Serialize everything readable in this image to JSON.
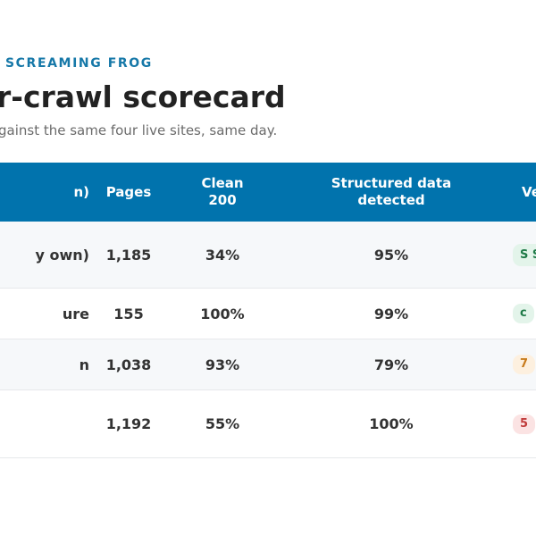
{
  "header": {
    "eyebrow": "SCREAMING FROG",
    "title": "r-crawl scorecard",
    "subtitle": "gainst the same four live sites, same day."
  },
  "table": {
    "columns": {
      "site": "n)",
      "pages": "Pages",
      "clean": "Clean 200",
      "structured": "Structured data detected",
      "verdict": "Ve"
    },
    "rows": [
      {
        "site": "y own)",
        "pages": "1,185",
        "clean": "34%",
        "structured": "95%",
        "verdict": "S S",
        "verdict_tone": "green"
      },
      {
        "site": "ure",
        "pages": "155",
        "clean": "100%",
        "structured": "99%",
        "verdict": "c",
        "verdict_tone": "green"
      },
      {
        "site": "n",
        "pages": "1,038",
        "clean": "93%",
        "structured": "79%",
        "verdict": "7",
        "verdict_tone": "orange"
      },
      {
        "site": "",
        "pages": "1,192",
        "clean": "55%",
        "structured": "100%",
        "verdict": "5",
        "verdict_tone": "red"
      }
    ]
  },
  "colors": {
    "accent": "#1678a8",
    "header_bg": "#0173ad",
    "badge_green_text": "#1e7a47",
    "badge_orange_text": "#c77a1a",
    "badge_red_text": "#c03a3a"
  }
}
